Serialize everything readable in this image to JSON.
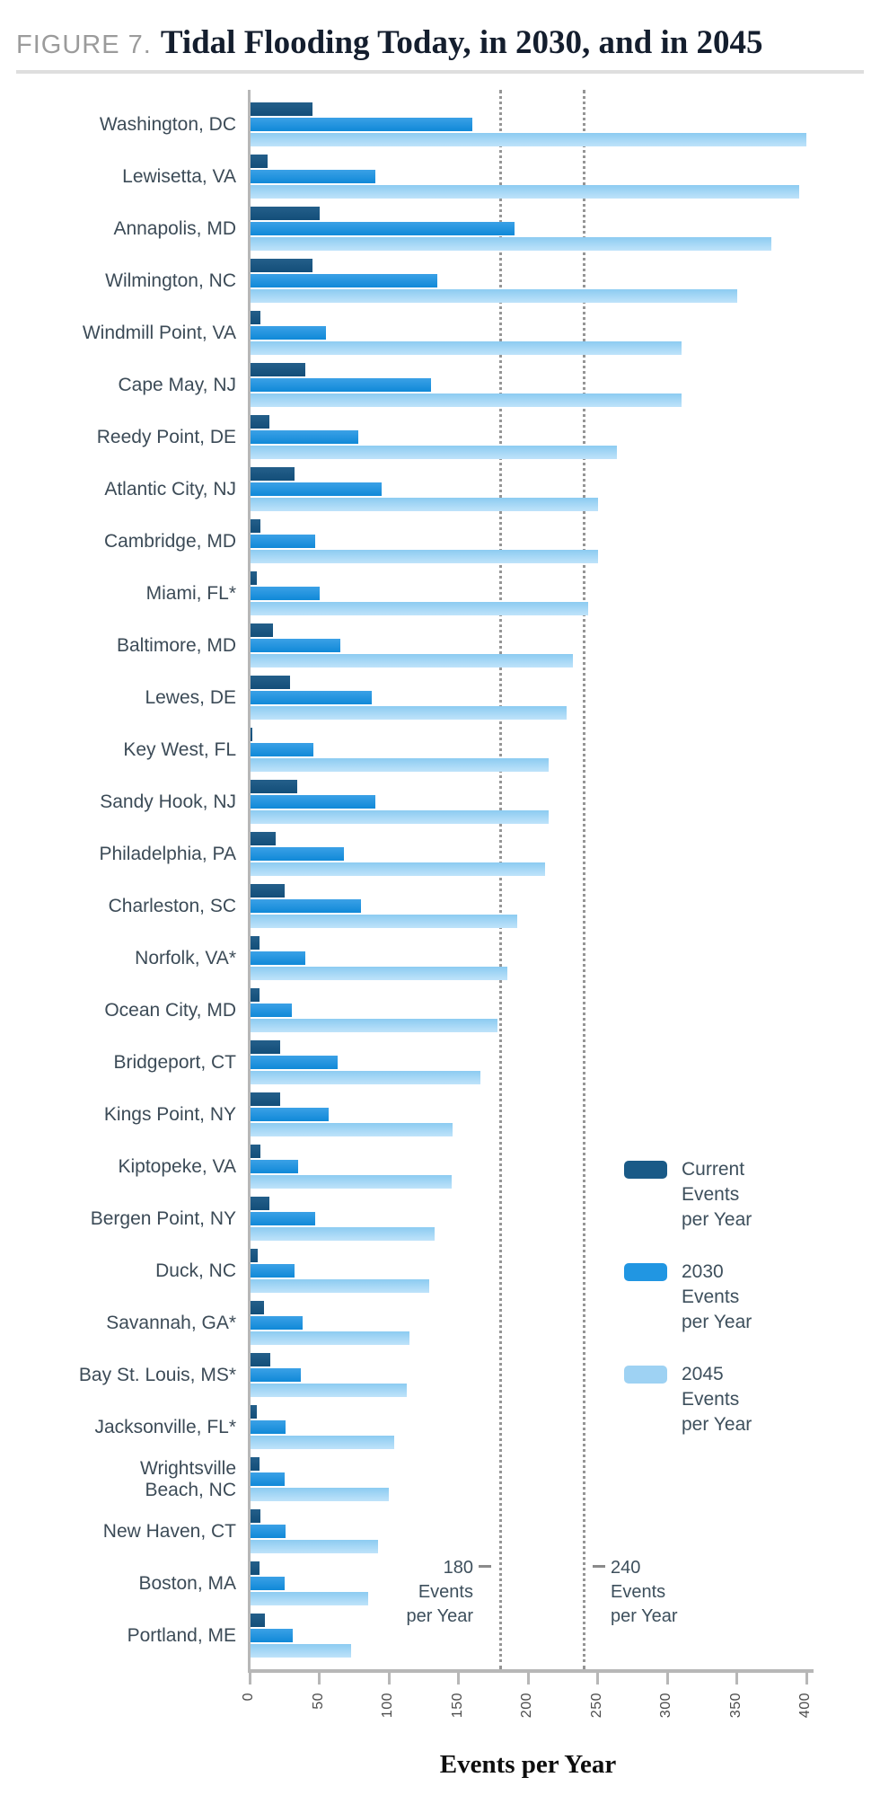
{
  "figure": {
    "label": "FIGURE 7.",
    "title": "Tidal Flooding Today, in 2030, and in 2045"
  },
  "chart_data": {
    "type": "bar",
    "orientation": "horizontal",
    "title": "Tidal Flooding Today, in 2030, and in 2045",
    "xlabel": "Events per Year",
    "xlim": [
      0,
      400
    ],
    "x_ticks": [
      0,
      50,
      100,
      150,
      200,
      250,
      300,
      350,
      400
    ],
    "grid": false,
    "legend_position": "right-middle",
    "categories": [
      "Washington, DC",
      "Lewisetta, VA",
      "Annapolis, MD",
      "Wilmington, NC",
      "Windmill Point, VA",
      "Cape May, NJ",
      "Reedy Point, DE",
      "Atlantic City, NJ",
      "Cambridge, MD",
      "Miami, FL*",
      "Baltimore, MD",
      "Lewes, DE",
      "Key West, FL",
      "Sandy Hook, NJ",
      "Philadelphia, PA",
      "Charleston, SC",
      "Norfolk, VA*",
      "Ocean City, MD",
      "Bridgeport, CT",
      "Kings Point, NY",
      "Kiptopeke, VA",
      "Bergen Point, NY",
      "Duck, NC",
      "Savannah, GA*",
      "Bay St. Louis, MS*",
      "Jacksonville, FL*",
      "Wrightsville\nBeach, NC",
      "New Haven, CT",
      "Boston, MA",
      "Portland, ME"
    ],
    "series": [
      {
        "name": "Current Events per Year",
        "legend_lines": [
          "Current",
          "Events",
          "per Year"
        ],
        "color": "#1a5a87",
        "values": [
          45,
          13,
          50,
          45,
          8,
          40,
          14,
          32,
          8,
          5,
          17,
          29,
          2,
          34,
          19,
          25,
          7,
          7,
          22,
          22,
          8,
          14,
          6,
          10,
          15,
          5,
          7,
          8,
          7,
          11
        ]
      },
      {
        "name": "2030 Events per Year",
        "legend_lines": [
          "2030",
          "Events",
          "per Year"
        ],
        "color": "#2196e2",
        "values": [
          160,
          90,
          190,
          135,
          55,
          130,
          78,
          95,
          47,
          50,
          65,
          88,
          46,
          90,
          68,
          80,
          40,
          30,
          63,
          57,
          35,
          47,
          32,
          38,
          37,
          26,
          25,
          26,
          25,
          31
        ]
      },
      {
        "name": "2045 Events per Year",
        "legend_lines": [
          "2045",
          "Events",
          "per Year"
        ],
        "color": "#9ed2f3",
        "values": [
          400,
          395,
          375,
          350,
          310,
          310,
          264,
          250,
          250,
          243,
          232,
          228,
          215,
          215,
          212,
          192,
          185,
          178,
          166,
          146,
          145,
          133,
          129,
          115,
          113,
          104,
          100,
          92,
          85,
          73
        ]
      }
    ],
    "reference_lines": [
      {
        "value": 180,
        "label_lines": [
          "180",
          "Events",
          "per Year"
        ],
        "label_side": "left"
      },
      {
        "value": 240,
        "label_lines": [
          "240",
          "Events",
          "per Year"
        ],
        "label_side": "right"
      }
    ]
  }
}
